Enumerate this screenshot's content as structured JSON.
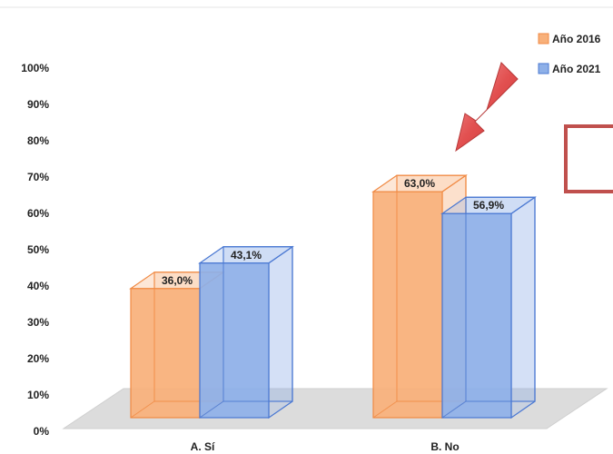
{
  "chart_data": {
    "type": "bar",
    "categories": [
      "A. Sí",
      "B. No"
    ],
    "series": [
      {
        "name": "Año 2016",
        "values": [
          36.0,
          63.0
        ],
        "labels": [
          "36,0%",
          "63,0%"
        ],
        "color": "#F8B07A"
      },
      {
        "name": "Año 2021",
        "values": [
          43.1,
          56.9
        ],
        "labels": [
          "43,1%",
          "56,9%"
        ],
        "color": "#8EB0E8"
      }
    ],
    "yticks": [
      "0%",
      "10%",
      "20%",
      "30%",
      "40%",
      "50%",
      "60%",
      "70%",
      "80%",
      "90%",
      "100%"
    ],
    "ylim": [
      0,
      100
    ],
    "legend_position": "top-right",
    "style": "3d-bar"
  },
  "colors": {
    "series_2016_edge": "#F08A44",
    "series_2021_edge": "#4A78D2",
    "arrow": "#E05555",
    "outline_box": "#C0504D",
    "floor": "#D9D9D9"
  }
}
